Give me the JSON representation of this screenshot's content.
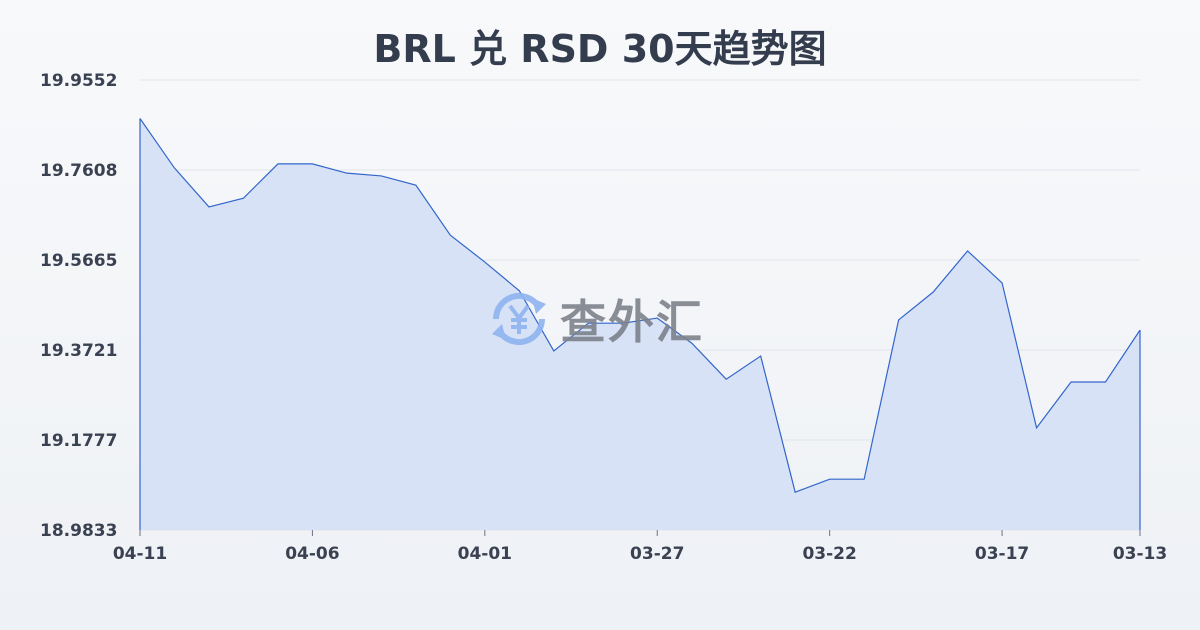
{
  "chart_data": {
    "type": "area",
    "title": "BRL 兑 RSD 30天趋势图",
    "xlabel": "",
    "ylabel": "",
    "dates": [
      "04-11",
      "04-10",
      "04-09",
      "04-08",
      "04-07",
      "04-06",
      "04-05",
      "04-04",
      "04-03",
      "04-02",
      "04-01",
      "03-31",
      "03-30",
      "03-29",
      "03-28",
      "03-27",
      "03-26",
      "03-25",
      "03-24",
      "03-23",
      "03-22",
      "03-21",
      "03-20",
      "03-19",
      "03-18",
      "03-17",
      "03-16",
      "03-15",
      "03-14",
      "03-13"
    ],
    "values": [
      19.872,
      19.765,
      19.681,
      19.7,
      19.774,
      19.774,
      19.754,
      19.748,
      19.728,
      19.62,
      19.562,
      19.5,
      19.37,
      19.43,
      19.43,
      19.441,
      19.387,
      19.309,
      19.359,
      19.065,
      19.093,
      19.093,
      19.437,
      19.497,
      19.586,
      19.517,
      19.204,
      19.303,
      19.303,
      19.415
    ],
    "x_tick_labels": [
      "04-11",
      "04-06",
      "04-01",
      "03-27",
      "03-22",
      "03-17",
      "03-13"
    ],
    "y_tick_labels": [
      "19.9552",
      "19.7608",
      "19.5665",
      "19.3721",
      "19.1777",
      "18.9833"
    ],
    "ylim": [
      18.9833,
      19.9552
    ],
    "grid": true,
    "line_color": "#3366cc",
    "fill_color": "#d6e0f5"
  },
  "watermark": {
    "text": "查外汇",
    "icon": "yen-exchange-icon"
  }
}
